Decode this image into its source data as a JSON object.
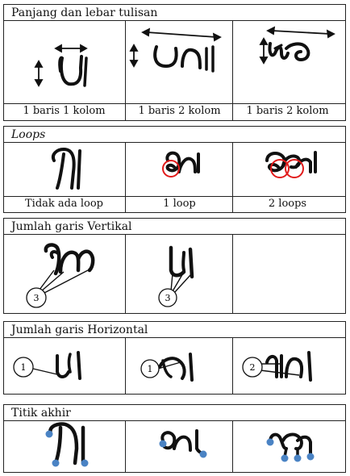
{
  "sections": [
    {
      "title": "Panjang dan lebar tulisan",
      "captions": [
        "1 baris 1 kolom",
        "1 baris 2 kolom",
        "1 baris 2 kolom"
      ]
    },
    {
      "title": "Loops",
      "captions": [
        "Tidak ada loop",
        "1 loop",
        "2 loops"
      ]
    },
    {
      "title": "Jumlah garis Vertikal",
      "markers": [
        "3",
        "3"
      ]
    },
    {
      "title": "Jumlah garis Horizontal",
      "markers": [
        "1",
        "1",
        "2"
      ]
    },
    {
      "title": "Titik akhir"
    }
  ],
  "colors": {
    "loop_circle": "#e11a1a",
    "end_point": "#4a83c4",
    "ink": "#111111"
  }
}
